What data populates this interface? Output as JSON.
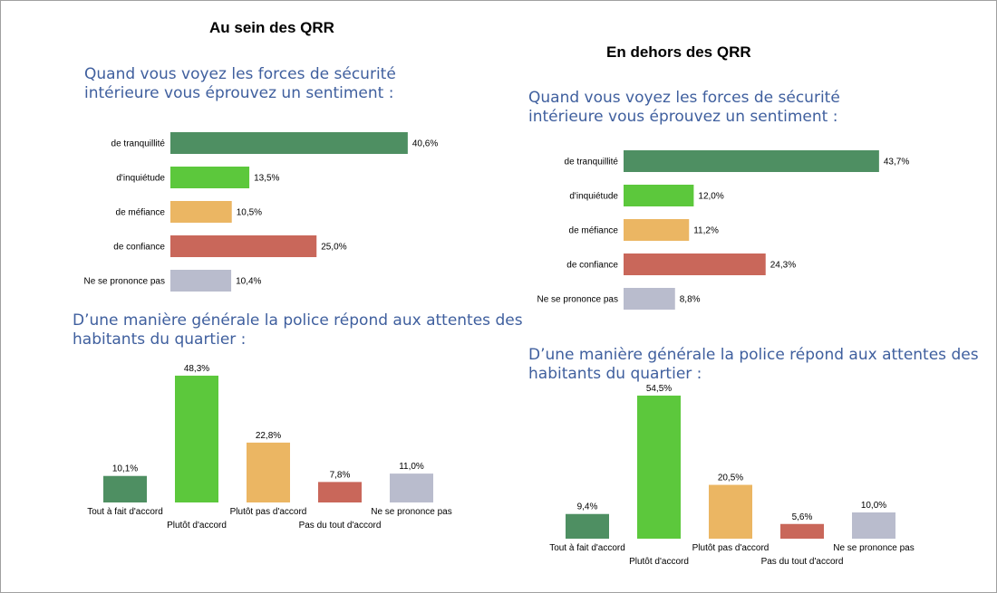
{
  "panels": [
    {
      "heading": "Au sein des QRR",
      "question1": {
        "line1": "Quand vous voyez les forces de sécurité",
        "line2": "intérieure vous éprouvez un sentiment :"
      },
      "question2": {
        "line1": "D’une manière générale la police répond aux attentes des",
        "line2": "habitants du quartier :"
      }
    },
    {
      "heading": "En dehors des QRR",
      "question1": {
        "line1": "Quand vous voyez les forces de sécurité",
        "line2": "intérieure vous éprouvez un sentiment :"
      },
      "question2": {
        "line1": "D’une manière générale la police répond aux attentes des",
        "line2": "habitants du quartier :"
      }
    }
  ],
  "colors": {
    "dark_green": "#4e8f62",
    "light_green": "#5cc83c",
    "orange": "#ebb663",
    "red": "#c9675a",
    "grey": "#b9bccd",
    "heading_blue": "#3f5f9e"
  },
  "chart_data": [
    {
      "type": "bar",
      "orientation": "horizontal",
      "panel": "Au sein des QRR",
      "categories": [
        "de tranquillité",
        "d'inquiétude",
        "de méfiance",
        "de confiance",
        "Ne se prononce pas"
      ],
      "values": [
        40.6,
        13.5,
        10.5,
        25.0,
        10.4
      ],
      "labels": [
        "40,6%",
        "13,5%",
        "10,5%",
        "25,0%",
        "10,4%"
      ],
      "colors": [
        "#4e8f62",
        "#5cc83c",
        "#ebb663",
        "#c9675a",
        "#b9bccd"
      ],
      "xlim": [
        0,
        100
      ]
    },
    {
      "type": "bar",
      "orientation": "vertical",
      "panel": "Au sein des QRR",
      "categories": [
        "Tout à fait d'accord",
        "Plutôt d'accord",
        "Plutôt pas d'accord",
        "Pas du tout d'accord",
        "Ne se prononce pas"
      ],
      "values": [
        10.1,
        48.3,
        22.8,
        7.8,
        11.0
      ],
      "labels": [
        "10,1%",
        "48,3%",
        "22,8%",
        "7,8%",
        "11,0%"
      ],
      "colors": [
        "#4e8f62",
        "#5cc83c",
        "#ebb663",
        "#c9675a",
        "#b9bccd"
      ],
      "ylim": [
        0,
        100
      ]
    },
    {
      "type": "bar",
      "orientation": "horizontal",
      "panel": "En dehors des QRR",
      "categories": [
        "de tranquillité",
        "d'inquiétude",
        "de méfiance",
        "de confiance",
        "Ne se prononce pas"
      ],
      "values": [
        43.7,
        12.0,
        11.2,
        24.3,
        8.8
      ],
      "labels": [
        "43,7%",
        "12,0%",
        "11,2%",
        "24,3%",
        "8,8%"
      ],
      "colors": [
        "#4e8f62",
        "#5cc83c",
        "#ebb663",
        "#c9675a",
        "#b9bccd"
      ],
      "xlim": [
        0,
        100
      ]
    },
    {
      "type": "bar",
      "orientation": "vertical",
      "panel": "En dehors des QRR",
      "categories": [
        "Tout à fait d'accord",
        "Plutôt d'accord",
        "Plutôt pas d'accord",
        "Pas du tout d'accord",
        "Ne se prononce pas"
      ],
      "values": [
        9.4,
        54.5,
        20.5,
        5.6,
        10.0
      ],
      "labels": [
        "9,4%",
        "54,5%",
        "20,5%",
        "5,6%",
        "10,0%"
      ],
      "colors": [
        "#4e8f62",
        "#5cc83c",
        "#ebb663",
        "#c9675a",
        "#b9bccd"
      ],
      "ylim": [
        0,
        100
      ]
    }
  ]
}
